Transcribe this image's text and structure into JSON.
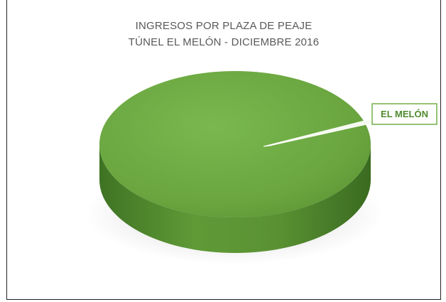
{
  "chart_data": {
    "type": "pie",
    "title": "INGRESOS POR PLAZA DE PEAJE",
    "subtitle": "TÚNEL EL MELÓN - DICIEMBRE 2016",
    "categories": [
      "EL MELÓN"
    ],
    "values": [
      100
    ],
    "colors": {
      "slice_top": "#72ad47",
      "slice_side": "#4f8a2e",
      "label_border": "#72ad47",
      "label_text": "#4f8a2e"
    },
    "legend": "none",
    "data_labels": "category-name-callout"
  }
}
